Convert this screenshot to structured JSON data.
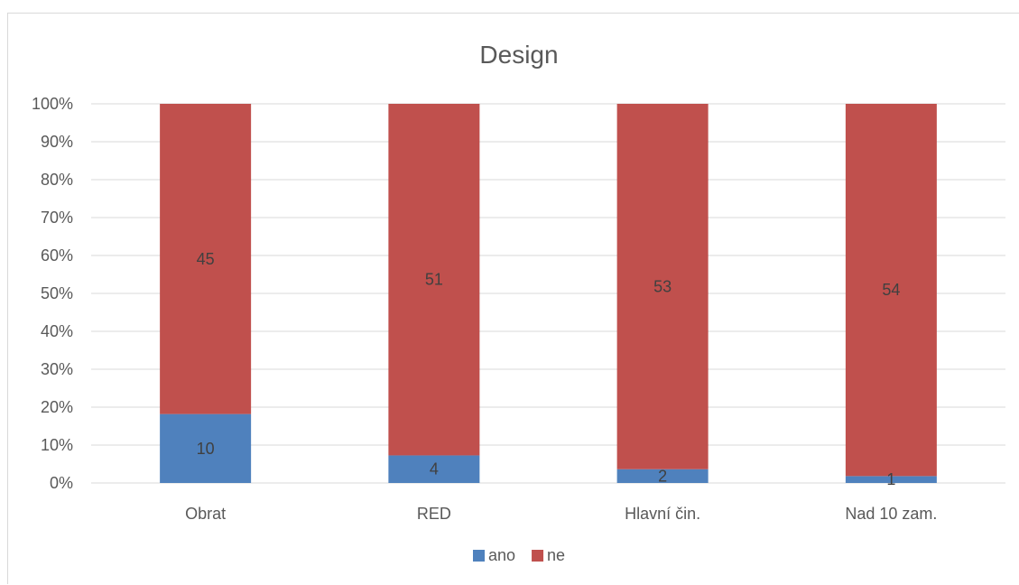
{
  "chart_data": {
    "type": "bar",
    "stacked": "percent",
    "title": "Design",
    "categories": [
      "Obrat",
      "RED",
      "Hlavní čin.",
      "Nad 10 zam."
    ],
    "series": [
      {
        "name": "ano",
        "values": [
          10,
          4,
          2,
          1
        ],
        "color": "#4f81bd"
      },
      {
        "name": "ne",
        "values": [
          45,
          51,
          53,
          54
        ],
        "color": "#c0504d"
      }
    ],
    "y_ticks": [
      "0%",
      "10%",
      "20%",
      "30%",
      "40%",
      "50%",
      "60%",
      "70%",
      "80%",
      "90%",
      "100%"
    ],
    "ylim": [
      0,
      100
    ],
    "grid": true,
    "legend": "bottom"
  }
}
